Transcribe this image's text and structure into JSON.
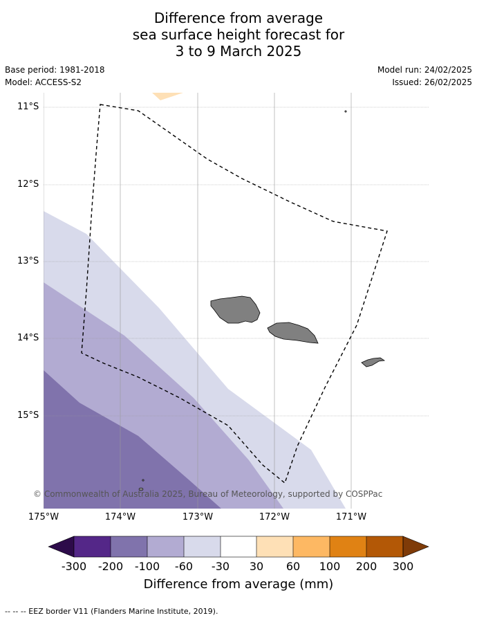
{
  "title_lines": [
    "Difference from average",
    "sea surface height forecast for",
    "3 to 9 March 2025"
  ],
  "meta": {
    "base_period": "Base period: 1981-2018",
    "model": "Model: ACCESS-S2",
    "model_run": "Model run: 24/02/2025",
    "issued": "Issued: 26/02/2025"
  },
  "map": {
    "lat_labels": [
      "11°S",
      "12°S",
      "13°S",
      "14°S",
      "15°S"
    ],
    "lon_labels": [
      "175°W",
      "174°W",
      "173°W",
      "172°W",
      "171°W"
    ],
    "copyright": "© Commonwealth of Australia 2025, Bureau of Meteorology, supported by COSPPac"
  },
  "colorbar": {
    "ticks": [
      "-300",
      "-200",
      "-100",
      "-60",
      "-30",
      "30",
      "60",
      "100",
      "200",
      "300"
    ],
    "colors": {
      "lt_-300": "#2d0b4a",
      "-300_-200": "#542788",
      "-200_-100": "#8073ac",
      "-100_-60": "#b2abd2",
      "-60_-30": "#d8daeb",
      "-30_30": "#ffffff",
      "30_60": "#fee0b6",
      "60_100": "#fdb863",
      "100_200": "#e08214",
      "200_300": "#b35806",
      "gt_300": "#7f3b08"
    },
    "label": "Difference from average (mm)"
  },
  "footer": {
    "eez_note": "-- -- -- EEZ border V11 (Flanders Marine Institute, 2019)."
  }
}
